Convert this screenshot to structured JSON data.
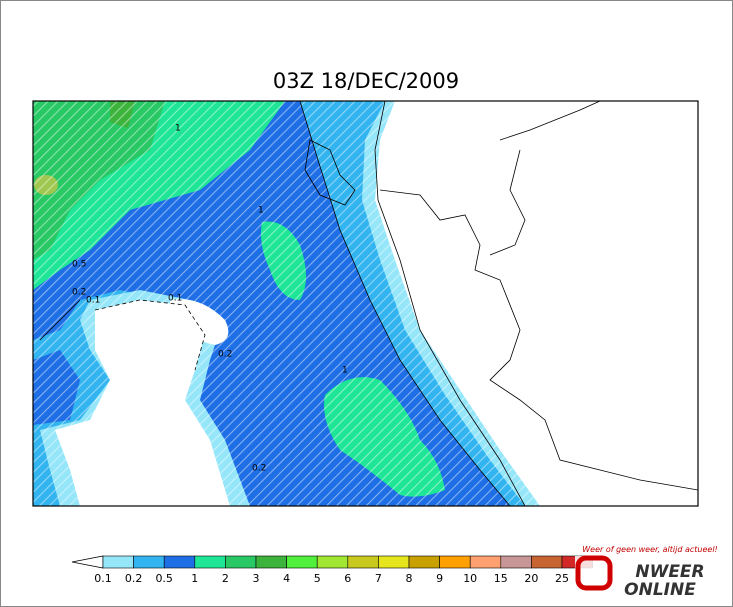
{
  "title": "03Z 18/DEC/2009",
  "contour_labels": [
    "1",
    "0.5",
    "0.2",
    "0.1",
    "0.2",
    "0.1",
    "1",
    "1",
    "0.2"
  ],
  "legend": {
    "items": [
      {
        "label": 0.1,
        "color": "#96e6fa"
      },
      {
        "label": 0.2,
        "color": "#32b4f0"
      },
      {
        "label": 0.5,
        "color": "#1e6ee6"
      },
      {
        "label": 1,
        "color": "#1ee696"
      },
      {
        "label": 2,
        "color": "#28c864"
      },
      {
        "label": 3,
        "color": "#3cb43c"
      },
      {
        "label": 4,
        "color": "#50f03c"
      },
      {
        "label": 5,
        "color": "#a0e632"
      },
      {
        "label": 6,
        "color": "#c8c81e"
      },
      {
        "label": 7,
        "color": "#e6e61e"
      },
      {
        "label": 8,
        "color": "#c8a000"
      },
      {
        "label": 9,
        "color": "#ffa000"
      },
      {
        "label": 10,
        "color": "#ffa070"
      },
      {
        "label": 15,
        "color": "#c89696"
      },
      {
        "label": 20,
        "color": "#c86432"
      },
      {
        "label": 25,
        "color": "#d22828"
      }
    ]
  },
  "logo": {
    "slogan": "Weer of geen weer, altijd actueel!",
    "line1": "NWEER",
    "line2": "ONLINE"
  }
}
